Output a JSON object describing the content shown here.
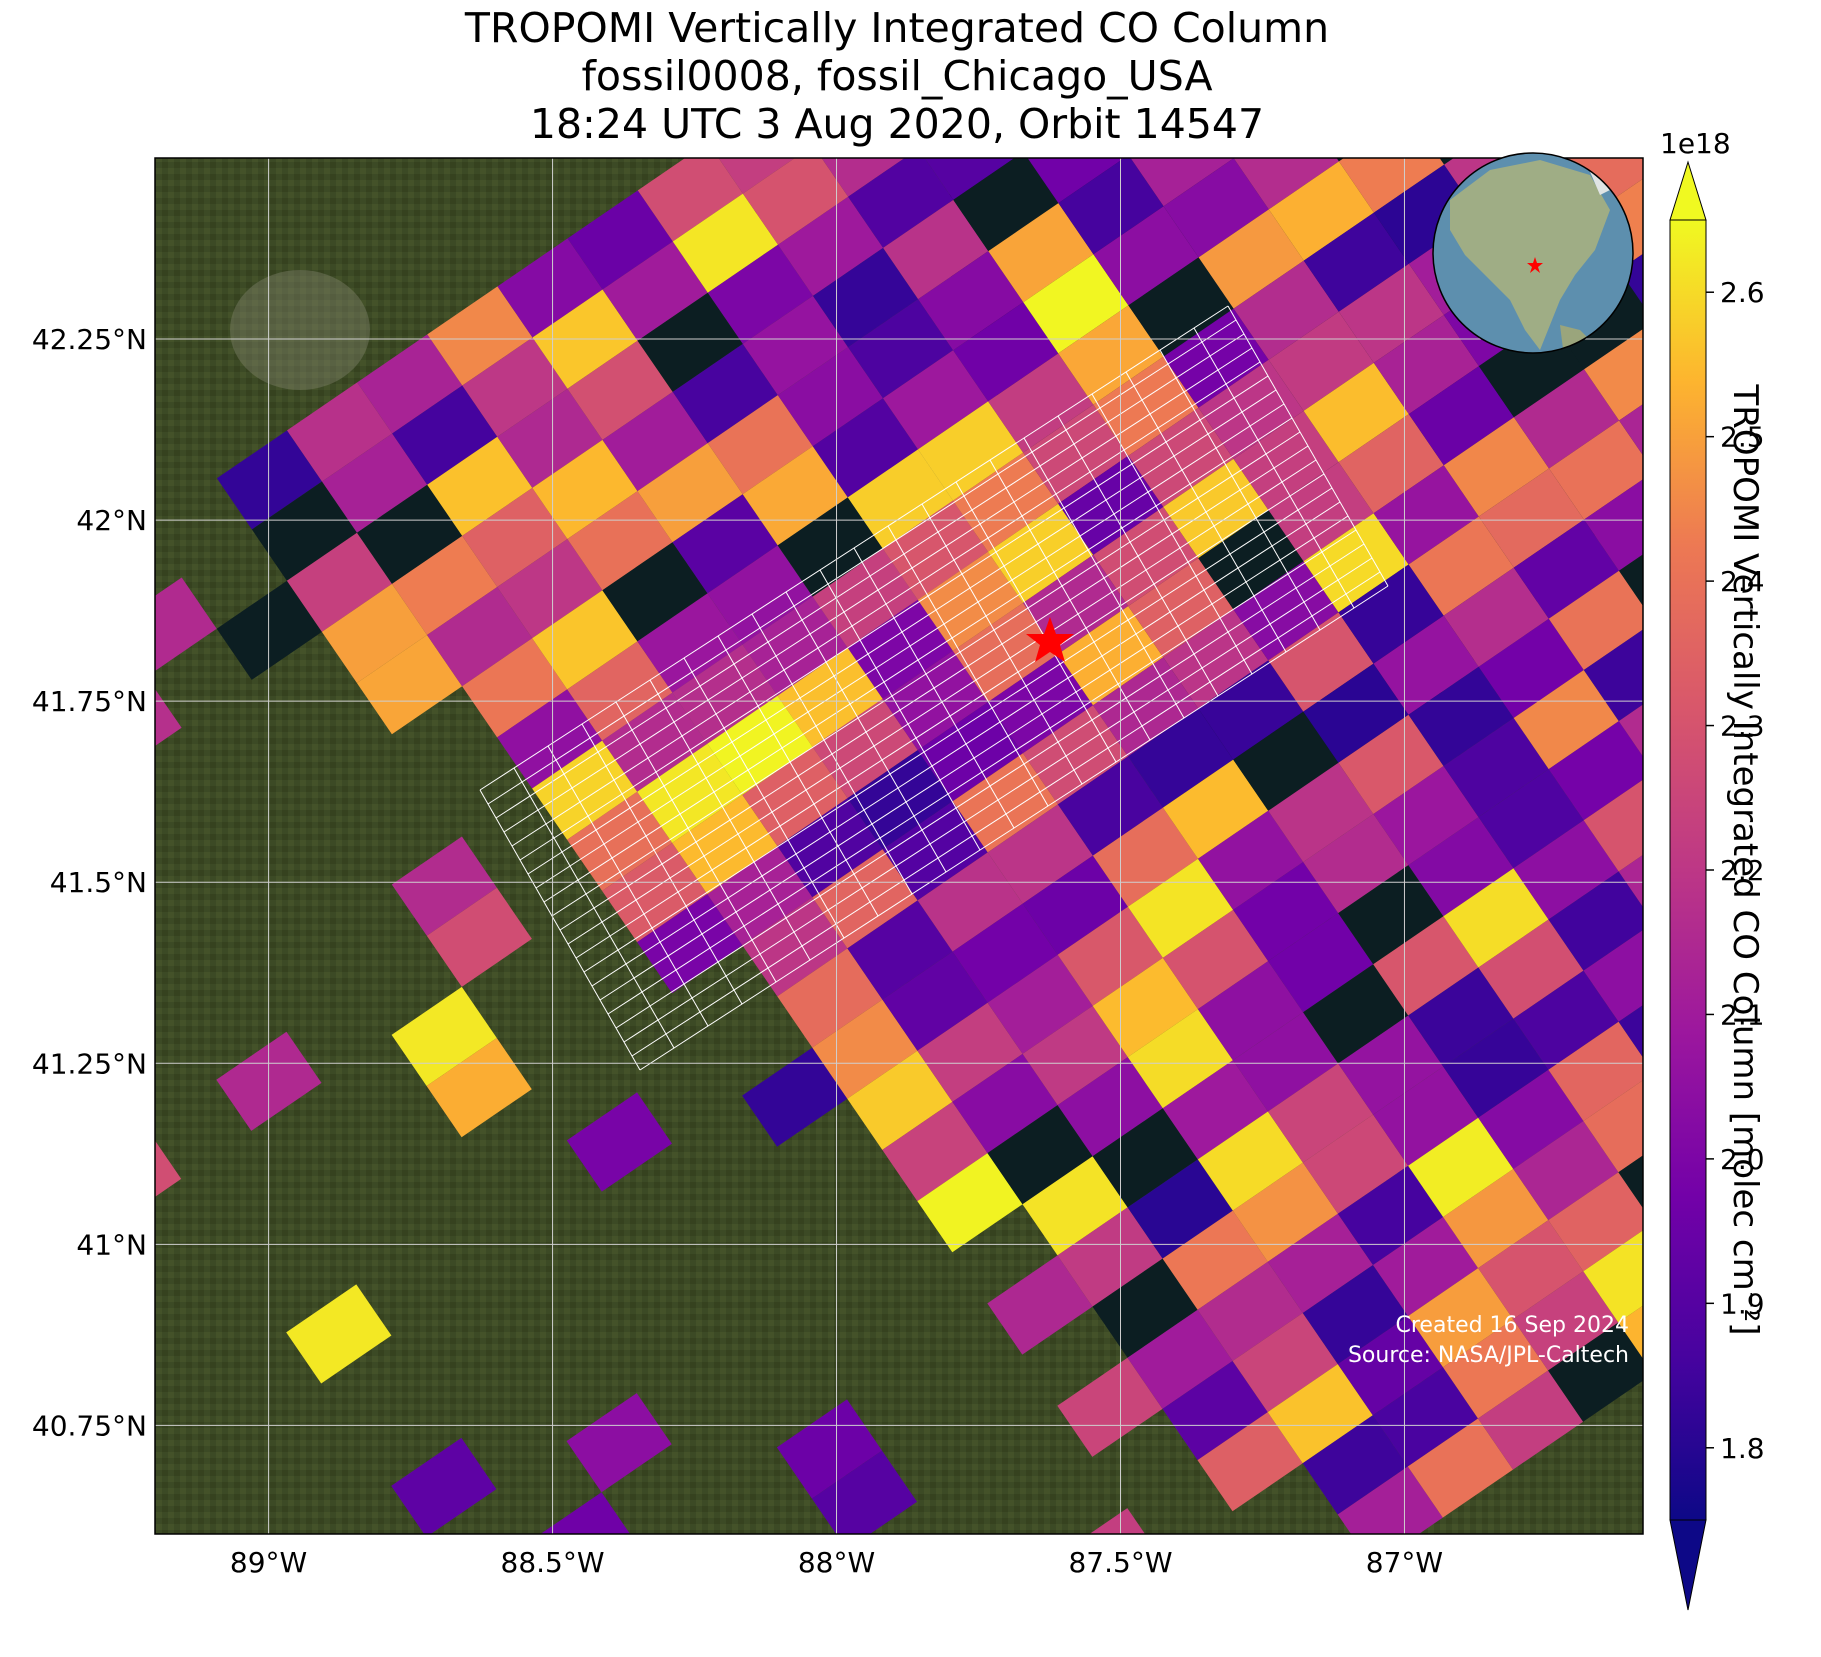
{
  "title_lines": [
    "TROPOMI Vertically Integrated CO Column",
    "fossil0008, fossil_Chicago_USA",
    "18:24 UTC 3 Aug 2020, Orbit 14547"
  ],
  "map": {
    "x_ticks": [
      {
        "value": -89.0,
        "label": "89°W"
      },
      {
        "value": -88.5,
        "label": "88.5°W"
      },
      {
        "value": -88.0,
        "label": "88°W"
      },
      {
        "value": -87.5,
        "label": "87.5°W"
      },
      {
        "value": -87.0,
        "label": "87°W"
      }
    ],
    "y_ticks": [
      {
        "value": 42.25,
        "label": "42.25°N"
      },
      {
        "value": 42.0,
        "label": "42°N"
      },
      {
        "value": 41.75,
        "label": "41.75°N"
      },
      {
        "value": 41.5,
        "label": "41.5°N"
      },
      {
        "value": 41.25,
        "label": "41.25°N"
      },
      {
        "value": 41.0,
        "label": "41°N"
      },
      {
        "value": 40.75,
        "label": "40.75°N"
      }
    ],
    "lon_range": [
      -89.2,
      -86.58
    ],
    "lat_range": [
      40.6,
      42.5
    ],
    "site_marker": {
      "lon": -87.63,
      "lat": 41.88,
      "symbol": "star",
      "color": "#ff0000"
    },
    "gridline_color": "#cfcfcf",
    "background": "satellite imagery",
    "inset": "globe view centered on North America with red star at site"
  },
  "colorbar": {
    "label": "TROPOMI Vertically Integrated CO Column [molec cm⁻²]",
    "exponent": "1e18",
    "colormap": "plasma",
    "min": 1.75,
    "max": 2.65,
    "extend": "both",
    "ticks": [
      "1.8",
      "1.9",
      "2.0",
      "2.1",
      "2.2",
      "2.3",
      "2.4",
      "2.5",
      "2.6"
    ]
  },
  "footer": {
    "created": "Created 16 Sep 2024",
    "source": "Source: NASA/JPL-Caltech"
  },
  "colors": {
    "water": "#0c1e22",
    "land": "#3c4a25"
  }
}
